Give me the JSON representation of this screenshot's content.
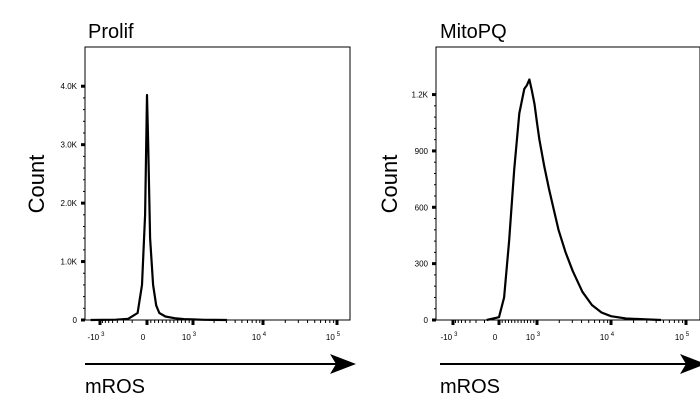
{
  "chart_data": [
    {
      "type": "line",
      "title": "Prolif",
      "xlabel": "mROS",
      "ylabel": "Count",
      "ylim": [
        0,
        4500
      ],
      "yticks": [
        0,
        1000,
        2000,
        3000,
        4000
      ],
      "ytick_labels": [
        "0",
        "1.0K",
        "2.0K",
        "3.0K",
        "4.0K"
      ],
      "xscale": "biexponential",
      "xtick_labels": [
        {
          "base": "-10",
          "exp": "3"
        },
        {
          "base": "0",
          "exp": ""
        },
        {
          "base": "10",
          "exp": "3"
        },
        {
          "base": "10",
          "exp": "4"
        },
        {
          "base": "10",
          "exp": "5"
        }
      ],
      "x": [
        -0.9,
        -0.5,
        -0.3,
        -0.15,
        -0.08,
        -0.03,
        0.0,
        0.02,
        0.05,
        0.1,
        0.15,
        0.2,
        0.3,
        0.45,
        0.6,
        0.8,
        1.0,
        1.2,
        1.5
      ],
      "y": [
        0,
        5,
        20,
        120,
        600,
        1800,
        3850,
        3000,
        1400,
        600,
        250,
        120,
        60,
        30,
        15,
        8,
        4,
        2,
        0
      ],
      "grid": false,
      "arrow": true
    },
    {
      "type": "line",
      "title": "MitoPQ",
      "xlabel": "mROS",
      "ylabel": "Count",
      "ylim": [
        0,
        1400
      ],
      "yticks": [
        0,
        300,
        600,
        900,
        1200
      ],
      "ytick_labels": [
        "0",
        "300",
        "600",
        "900",
        "1.2K"
      ],
      "xscale": "biexponential",
      "xtick_labels": [
        {
          "base": "-10",
          "exp": "3"
        },
        {
          "base": "0",
          "exp": ""
        },
        {
          "base": "10",
          "exp": "3"
        },
        {
          "base": "10",
          "exp": "4"
        },
        {
          "base": "10",
          "exp": "5"
        }
      ],
      "x": [
        -0.2,
        0.0,
        0.1,
        0.2,
        0.3,
        0.4,
        0.5,
        0.55,
        0.6,
        0.65,
        0.7,
        0.75,
        0.8,
        0.9,
        1.0,
        1.1,
        1.2,
        1.35,
        1.5,
        1.7,
        1.9,
        2.1,
        2.3,
        2.6,
        3.0,
        3.3
      ],
      "y": [
        0,
        15,
        120,
        420,
        800,
        1100,
        1230,
        1250,
        1280,
        1220,
        1150,
        1050,
        960,
        820,
        700,
        590,
        480,
        360,
        260,
        150,
        80,
        40,
        20,
        8,
        3,
        0
      ],
      "grid": false,
      "arrow": true
    }
  ]
}
